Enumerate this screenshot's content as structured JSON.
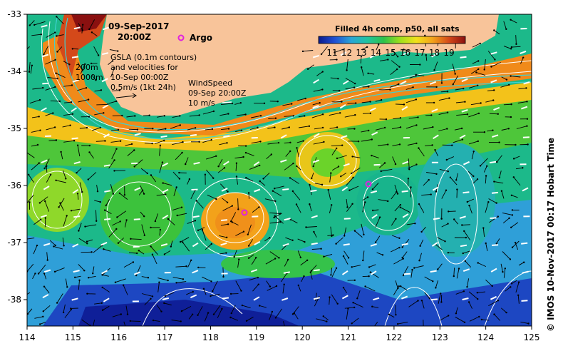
{
  "map": {
    "date": "09-Sep-2017",
    "time": "20:00Z",
    "argo_label": "Argo",
    "gsla_lines": [
      "GSLA (0.1m contours)",
      "and velocities for",
      "10-Sep 00:00Z",
      "0.5m/s (1kt 24h)"
    ],
    "depth_labels": [
      "200m",
      "1000m"
    ],
    "wind_lines": [
      "WindSpeed",
      "09-Sep 20:00Z",
      "10 m/s"
    ],
    "colorbar_title": "Filled 4h comp, p50, all sats",
    "colorbar_ticks": [
      "11",
      "12",
      "13",
      "14",
      "15",
      "16",
      "17",
      "18",
      "19"
    ],
    "colorbar_colors": [
      "#0b1a8c",
      "#1f4fd4",
      "#2aa5d6",
      "#20c4a0",
      "#2ec24a",
      "#9ee01c",
      "#f2e11a",
      "#f3a21a",
      "#d4491a",
      "#8a1010"
    ],
    "credit": "© IMOS 10-Nov-2017 00:17 Hobart Time",
    "lon_ticks": [
      "114",
      "115",
      "116",
      "117",
      "118",
      "119",
      "120",
      "121",
      "122",
      "123",
      "124",
      "125"
    ],
    "lat_ticks": [
      "-33",
      "-34",
      "-35",
      "-36",
      "-37",
      "-38"
    ],
    "land_color": "#f8c49a",
    "argo_color": "#e020e0"
  }
}
